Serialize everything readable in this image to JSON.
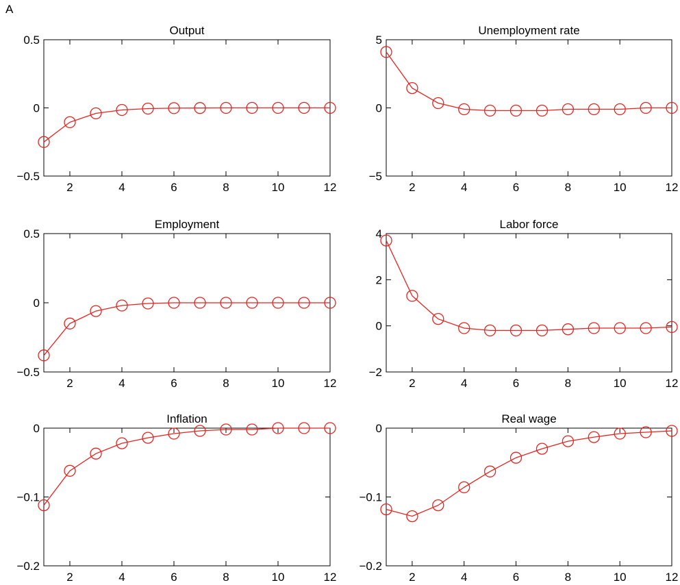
{
  "figure_label": "A",
  "line_color": "#e8221e",
  "chart_data": [
    {
      "type": "line",
      "title": "Output",
      "xlabel": "",
      "ylabel": "",
      "x": [
        1,
        2,
        3,
        4,
        5,
        6,
        7,
        8,
        9,
        10,
        11,
        12
      ],
      "series": [
        {
          "values": [
            -0.25,
            -0.105,
            -0.04,
            -0.015,
            -0.005,
            -0.002,
            -0.001,
            0,
            0,
            0,
            0,
            0
          ]
        }
      ],
      "xlim": [
        1,
        12
      ],
      "ylim": [
        -0.5,
        0.5
      ],
      "xticks": [
        2,
        4,
        6,
        8,
        10,
        12
      ],
      "yticks": [
        -0.5,
        0,
        0.5
      ],
      "ytick_labels": [
        "−0.5",
        "0",
        "0.5"
      ],
      "grid": false,
      "marker": "circle"
    },
    {
      "type": "line",
      "title": "Unemployment rate",
      "xlabel": "",
      "ylabel": "",
      "x": [
        1,
        2,
        3,
        4,
        5,
        6,
        7,
        8,
        9,
        10,
        11,
        12
      ],
      "series": [
        {
          "values": [
            4.1,
            1.45,
            0.35,
            -0.1,
            -0.2,
            -0.2,
            -0.2,
            -0.1,
            -0.1,
            -0.1,
            0,
            0
          ]
        }
      ],
      "xlim": [
        1,
        12
      ],
      "ylim": [
        -5,
        5
      ],
      "xticks": [
        2,
        4,
        6,
        8,
        10,
        12
      ],
      "yticks": [
        -5,
        0,
        5
      ],
      "ytick_labels": [
        "−5",
        "0",
        "5"
      ],
      "grid": false,
      "marker": "circle"
    },
    {
      "type": "line",
      "title": "Employment",
      "xlabel": "",
      "ylabel": "",
      "x": [
        1,
        2,
        3,
        4,
        5,
        6,
        7,
        8,
        9,
        10,
        11,
        12
      ],
      "series": [
        {
          "values": [
            -0.38,
            -0.15,
            -0.06,
            -0.02,
            -0.005,
            0,
            0,
            0,
            0,
            0,
            0,
            0
          ]
        }
      ],
      "xlim": [
        1,
        12
      ],
      "ylim": [
        -0.5,
        0.5
      ],
      "xticks": [
        2,
        4,
        6,
        8,
        10,
        12
      ],
      "yticks": [
        -0.5,
        0,
        0.5
      ],
      "ytick_labels": [
        "−0.5",
        "0",
        "0.5"
      ],
      "grid": false,
      "marker": "circle"
    },
    {
      "type": "line",
      "title": "Labor force",
      "xlabel": "",
      "ylabel": "",
      "x": [
        1,
        2,
        3,
        4,
        5,
        6,
        7,
        8,
        9,
        10,
        11,
        12
      ],
      "series": [
        {
          "values": [
            3.7,
            1.3,
            0.3,
            -0.1,
            -0.2,
            -0.2,
            -0.2,
            -0.15,
            -0.1,
            -0.1,
            -0.1,
            -0.05
          ]
        }
      ],
      "xlim": [
        1,
        12
      ],
      "ylim": [
        -2,
        4
      ],
      "xticks": [
        2,
        4,
        6,
        8,
        10,
        12
      ],
      "yticks": [
        -2,
        0,
        2,
        4
      ],
      "ytick_labels": [
        "−2",
        "0",
        "2",
        "4"
      ],
      "grid": false,
      "marker": "circle"
    },
    {
      "type": "line",
      "title": "Inflation",
      "xlabel": "",
      "ylabel": "",
      "x": [
        1,
        2,
        3,
        4,
        5,
        6,
        7,
        8,
        9,
        10,
        11,
        12
      ],
      "series": [
        {
          "values": [
            -0.112,
            -0.062,
            -0.037,
            -0.022,
            -0.014,
            -0.008,
            -0.004,
            -0.002,
            -0.002,
            0,
            0,
            0
          ]
        }
      ],
      "xlim": [
        1,
        12
      ],
      "ylim": [
        -0.2,
        0
      ],
      "xticks": [
        2,
        4,
        6,
        8,
        10,
        12
      ],
      "yticks": [
        -0.2,
        -0.1,
        0
      ],
      "ytick_labels": [
        "−0.2",
        "−0.1",
        "0"
      ],
      "grid": false,
      "marker": "circle"
    },
    {
      "type": "line",
      "title": "Real wage",
      "xlabel": "",
      "ylabel": "",
      "x": [
        1,
        2,
        3,
        4,
        5,
        6,
        7,
        8,
        9,
        10,
        11,
        12
      ],
      "series": [
        {
          "values": [
            -0.118,
            -0.128,
            -0.112,
            -0.086,
            -0.063,
            -0.043,
            -0.03,
            -0.019,
            -0.013,
            -0.008,
            -0.006,
            -0.004
          ]
        }
      ],
      "xlim": [
        1,
        12
      ],
      "ylim": [
        -0.2,
        0
      ],
      "xticks": [
        2,
        4,
        6,
        8,
        10,
        12
      ],
      "yticks": [
        -0.2,
        -0.1,
        0
      ],
      "ytick_labels": [
        "−0.2",
        "−0.1",
        "0"
      ],
      "grid": false,
      "marker": "circle"
    }
  ]
}
